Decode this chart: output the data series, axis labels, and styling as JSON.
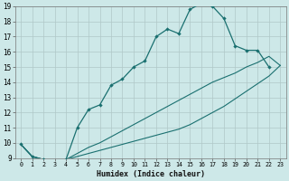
{
  "xlabel": "Humidex (Indice chaleur)",
  "bg_color": "#cde8e8",
  "grid_color": "#b0c8c8",
  "line_color": "#1a7070",
  "xlim": [
    -0.5,
    23.5
  ],
  "ylim": [
    9,
    19
  ],
  "xticks": [
    0,
    1,
    2,
    3,
    4,
    5,
    6,
    7,
    8,
    9,
    10,
    11,
    12,
    13,
    14,
    15,
    16,
    17,
    18,
    19,
    20,
    21,
    22,
    23
  ],
  "yticks": [
    9,
    10,
    11,
    12,
    13,
    14,
    15,
    16,
    17,
    18,
    19
  ],
  "line1_x": [
    0,
    1,
    2,
    3,
    4,
    5,
    6,
    7,
    8,
    9,
    10,
    11,
    12,
    13,
    14,
    15,
    16,
    17,
    18,
    19,
    20,
    21,
    22
  ],
  "line1_y": [
    9.9,
    9.1,
    8.9,
    8.8,
    8.9,
    11.0,
    12.2,
    12.5,
    13.8,
    14.2,
    15.0,
    15.4,
    17.0,
    17.5,
    17.2,
    18.8,
    19.2,
    19.0,
    18.2,
    16.4,
    16.1,
    16.1,
    15.0
  ],
  "line2_x": [
    0,
    1,
    2,
    3,
    4,
    5,
    6,
    7,
    8,
    9,
    10,
    11,
    12,
    13,
    14,
    15,
    16,
    17,
    18,
    19,
    20,
    21,
    22,
    23
  ],
  "line2_y": [
    9.9,
    9.1,
    8.9,
    8.8,
    8.9,
    9.3,
    9.7,
    10.0,
    10.4,
    10.8,
    11.2,
    11.6,
    12.0,
    12.4,
    12.8,
    13.2,
    13.6,
    14.0,
    14.3,
    14.6,
    15.0,
    15.3,
    15.7,
    15.1
  ],
  "line3_x": [
    0,
    1,
    2,
    3,
    4,
    5,
    6,
    7,
    8,
    9,
    10,
    11,
    12,
    13,
    14,
    15,
    16,
    17,
    18,
    19,
    20,
    21,
    22,
    23
  ],
  "line3_y": [
    9.9,
    9.1,
    8.9,
    8.8,
    8.9,
    9.1,
    9.3,
    9.5,
    9.7,
    9.9,
    10.1,
    10.3,
    10.5,
    10.7,
    10.9,
    11.2,
    11.6,
    12.0,
    12.4,
    12.9,
    13.4,
    13.9,
    14.4,
    15.1
  ]
}
